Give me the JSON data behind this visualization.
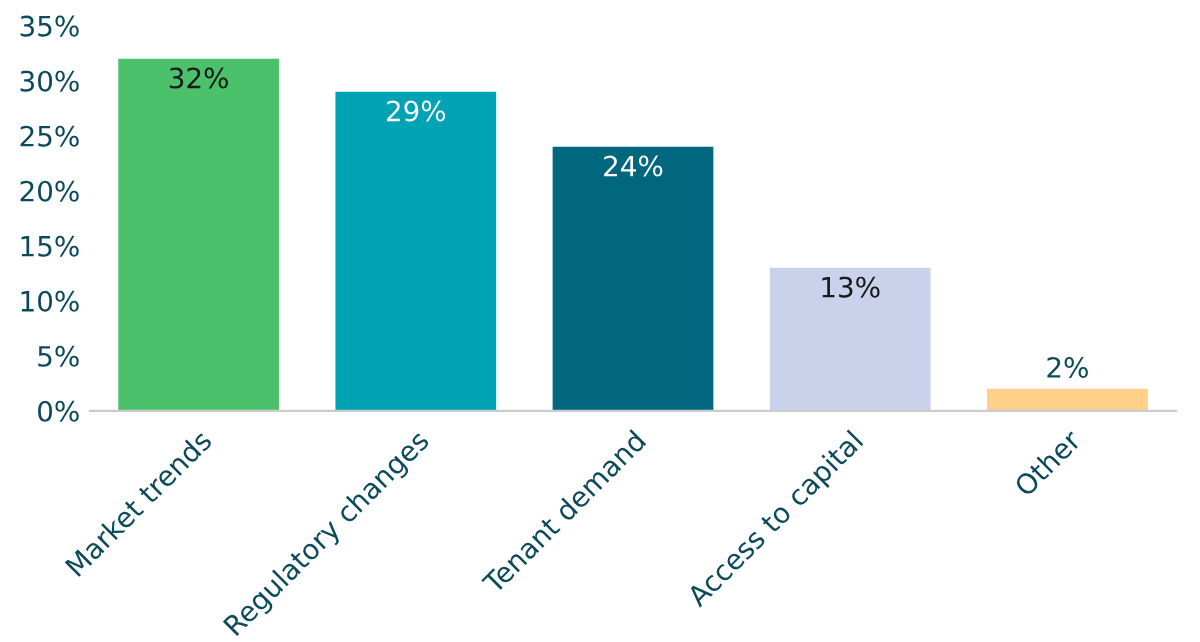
{
  "chart_data": {
    "type": "bar",
    "categories": [
      "Market trends",
      "Regulatory changes",
      "Tenant demand",
      "Access to capital",
      "Other"
    ],
    "values": [
      32,
      29,
      24,
      13,
      2
    ],
    "colors": [
      "#4cc16b",
      "#00a3b4",
      "#00677f",
      "#cad1ea",
      "#fdcf88"
    ],
    "value_labels": [
      "32%",
      "29%",
      "24%",
      "13%",
      "2%"
    ],
    "ylim": [
      0,
      35
    ],
    "yticks": [
      {
        "value": 0,
        "label": "0%"
      },
      {
        "value": 5,
        "label": "5%"
      },
      {
        "value": 10,
        "label": "10%"
      },
      {
        "value": 15,
        "label": "15%"
      },
      {
        "value": 20,
        "label": "20%"
      },
      {
        "value": 25,
        "label": "25%"
      },
      {
        "value": 30,
        "label": "30%"
      },
      {
        "value": 35,
        "label": "35%"
      }
    ],
    "grid": false
  }
}
